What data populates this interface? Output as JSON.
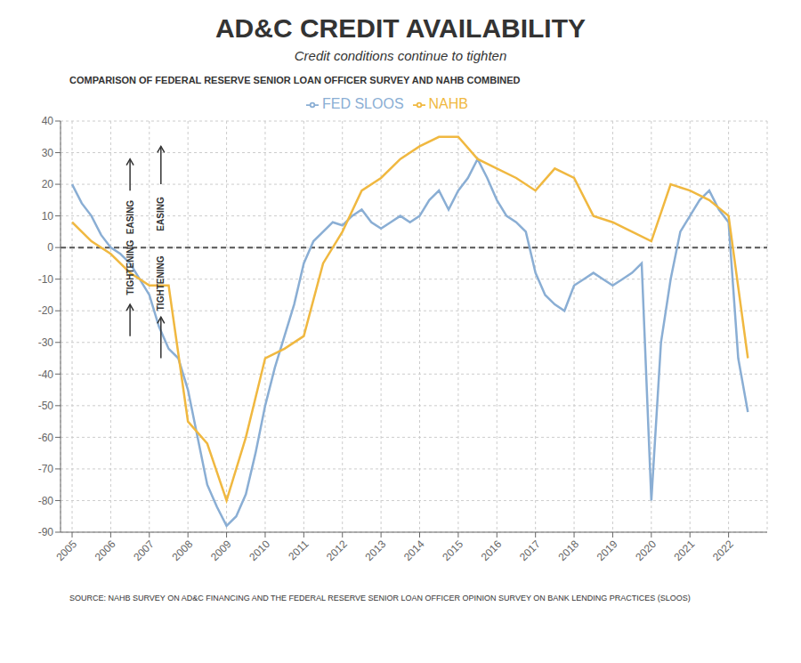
{
  "chart_data": {
    "type": "line",
    "title": "AD&C CREDIT AVAILABILITY",
    "subtitle": "Credit conditions continue to tighten",
    "subtitle2": "COMPARISON OF FEDERAL RESERVE SENIOR LOAN OFFICER SURVEY AND NAHB COMBINED",
    "source": "SOURCE: NAHB SURVEY ON AD&C FINANCING AND THE FEDERAL RESERVE SENIOR LOAN OFFICER OPINION SURVEY ON BANK LENDING PRACTICES (SLOOS)",
    "legend": "top",
    "grid": true,
    "xlim": [
      2004.7,
      2023.0
    ],
    "xticks": [
      2005,
      2006,
      2007,
      2008,
      2009,
      2010,
      2011,
      2012,
      2013,
      2014,
      2015,
      2016,
      2017,
      2018,
      2019,
      2020,
      2021,
      2022
    ],
    "ylim": [
      -90,
      40
    ],
    "yticks": [
      -90,
      -80,
      -70,
      -60,
      -50,
      -40,
      -30,
      -20,
      -10,
      0,
      10,
      20,
      30,
      40
    ],
    "reference_lines": [
      0
    ],
    "annotations": [
      {
        "text": "EASING",
        "x": 2006.5,
        "y": 15,
        "arrow_from": 18,
        "arrow_to": 28
      },
      {
        "text": "TIGHTENING",
        "x": 2006.5,
        "y": -15,
        "arrow_from": -28,
        "arrow_to": -18
      },
      {
        "text": "EASING",
        "x": 2007.3,
        "y": 16,
        "arrow_from": 20,
        "arrow_to": 32
      },
      {
        "text": "TIGHTENING",
        "x": 2007.3,
        "y": -20,
        "arrow_from": -35,
        "arrow_to": -22
      }
    ],
    "series": [
      {
        "name": "FED SLOOS",
        "color": "#8aaed4",
        "x": [
          2005.0,
          2005.25,
          2005.5,
          2005.75,
          2006.0,
          2006.25,
          2006.5,
          2006.75,
          2007.0,
          2007.25,
          2007.5,
          2007.75,
          2008.0,
          2008.25,
          2008.5,
          2008.75,
          2009.0,
          2009.25,
          2009.5,
          2009.75,
          2010.0,
          2010.25,
          2010.5,
          2010.75,
          2011.0,
          2011.25,
          2011.5,
          2011.75,
          2012.0,
          2012.25,
          2012.5,
          2012.75,
          2013.0,
          2013.25,
          2013.5,
          2013.75,
          2014.0,
          2014.25,
          2014.5,
          2014.75,
          2015.0,
          2015.25,
          2015.5,
          2015.75,
          2016.0,
          2016.25,
          2016.5,
          2016.75,
          2017.0,
          2017.25,
          2017.5,
          2017.75,
          2018.0,
          2018.25,
          2018.5,
          2018.75,
          2019.0,
          2019.25,
          2019.5,
          2019.75,
          2020.0,
          2020.25,
          2020.5,
          2020.75,
          2021.0,
          2021.25,
          2021.5,
          2021.75,
          2022.0,
          2022.25,
          2022.5
        ],
        "values": [
          20,
          14,
          10,
          4,
          0,
          -2,
          -5,
          -10,
          -15,
          -25,
          -32,
          -35,
          -45,
          -60,
          -75,
          -82,
          -88,
          -85,
          -78,
          -65,
          -50,
          -38,
          -28,
          -18,
          -5,
          2,
          5,
          8,
          7,
          10,
          12,
          8,
          6,
          8,
          10,
          8,
          10,
          15,
          18,
          12,
          18,
          22,
          28,
          22,
          15,
          10,
          8,
          5,
          -8,
          -15,
          -18,
          -20,
          -12,
          -10,
          -8,
          -10,
          -12,
          -10,
          -8,
          -5,
          -80,
          -30,
          -10,
          5,
          10,
          15,
          18,
          12,
          8,
          -35,
          -52
        ]
      },
      {
        "name": "NAHB",
        "color": "#f0b840",
        "x": [
          2005.0,
          2005.5,
          2006.0,
          2006.5,
          2007.0,
          2007.5,
          2008.0,
          2008.5,
          2009.0,
          2009.5,
          2010.0,
          2010.5,
          2011.0,
          2011.5,
          2012.0,
          2012.5,
          2013.0,
          2013.5,
          2014.0,
          2014.5,
          2015.0,
          2015.5,
          2016.0,
          2016.5,
          2017.0,
          2017.5,
          2018.0,
          2018.5,
          2019.0,
          2019.5,
          2020.0,
          2020.5,
          2021.0,
          2021.5,
          2022.0,
          2022.5
        ],
        "values": [
          8,
          2,
          -2,
          -8,
          -12,
          -12,
          -55,
          -62,
          -80,
          -60,
          -35,
          -32,
          -28,
          -5,
          5,
          18,
          22,
          28,
          32,
          35,
          35,
          28,
          25,
          22,
          18,
          25,
          22,
          10,
          8,
          5,
          2,
          20,
          18,
          15,
          10,
          -35
        ]
      }
    ]
  }
}
